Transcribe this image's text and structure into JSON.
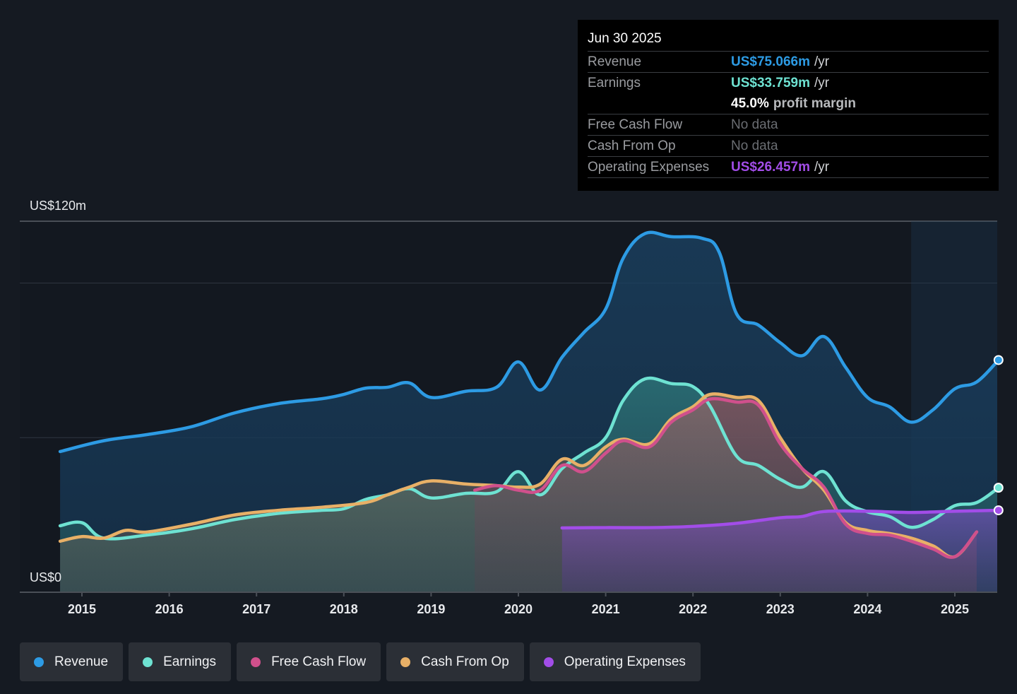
{
  "tooltip": {
    "date": "Jun 30 2025",
    "rows": [
      {
        "label": "Revenue",
        "value": "US$75.066m",
        "unit": "/yr",
        "color": "#2d9be4"
      },
      {
        "label": "Earnings",
        "value": "US$33.759m",
        "unit": "/yr",
        "color": "#6ee2d2"
      },
      {
        "label": "",
        "pct": "45.0%",
        "note": "profit margin"
      },
      {
        "label": "Free Cash Flow",
        "value": "No data"
      },
      {
        "label": "Cash From Op",
        "value": "No data"
      },
      {
        "label": "Operating Expenses",
        "value": "US$26.457m",
        "unit": "/yr",
        "color": "#a24de8"
      }
    ]
  },
  "legend": [
    {
      "label": "Revenue",
      "color": "#2d9be4"
    },
    {
      "label": "Earnings",
      "color": "#6ee2d2"
    },
    {
      "label": "Free Cash Flow",
      "color": "#d0508c"
    },
    {
      "label": "Cash From Op",
      "color": "#e8b067"
    },
    {
      "label": "Operating Expenses",
      "color": "#a24de8"
    }
  ],
  "chart_data": {
    "type": "area",
    "title": "",
    "xlabel": "",
    "ylabel": "",
    "y_top_label": "US$120m",
    "y_bottom_label": "US$0",
    "ylim": [
      0,
      120
    ],
    "xlim": [
      2014.75,
      2025.5
    ],
    "x_ticks": [
      2015,
      2016,
      2017,
      2018,
      2019,
      2020,
      2021,
      2022,
      2023,
      2024,
      2025
    ],
    "x_tick_labels": [
      "2015",
      "2016",
      "2017",
      "2018",
      "2019",
      "2020",
      "2021",
      "2022",
      "2023",
      "2024",
      "2025"
    ],
    "gridlines_y": [
      50,
      100,
      120
    ],
    "highlight_region_start": 2024.5,
    "unit": "US$m",
    "series": [
      {
        "name": "Revenue",
        "color": "#2d9be4",
        "x": [
          2014.75,
          2015.25,
          2015.75,
          2016.25,
          2016.75,
          2017.25,
          2017.75,
          2018.0,
          2018.25,
          2018.5,
          2018.75,
          2019.0,
          2019.4,
          2019.75,
          2020.0,
          2020.25,
          2020.5,
          2020.75,
          2021.0,
          2021.2,
          2021.45,
          2021.75,
          2022.1,
          2022.3,
          2022.5,
          2022.75,
          2023.0,
          2023.25,
          2023.5,
          2023.75,
          2024.0,
          2024.25,
          2024.5,
          2024.75,
          2025.0,
          2025.25,
          2025.5
        ],
        "values": [
          45.5,
          49,
          51,
          53.5,
          58,
          61,
          62.6,
          64,
          66,
          66.3,
          67.7,
          63,
          65,
          66.3,
          74.5,
          65.4,
          76,
          84,
          91.6,
          108,
          116,
          115,
          114.5,
          110,
          90,
          86.4,
          80.7,
          76.5,
          82.7,
          72.7,
          63,
          60,
          55,
          59,
          65.8,
          68,
          75.1
        ]
      },
      {
        "name": "Earnings",
        "color": "#6ee2d2",
        "x": [
          2014.75,
          2015.0,
          2015.25,
          2015.75,
          2016.25,
          2016.75,
          2017.25,
          2017.75,
          2018.0,
          2018.25,
          2018.5,
          2018.75,
          2019.0,
          2019.4,
          2019.75,
          2020.0,
          2020.25,
          2020.5,
          2020.75,
          2021.0,
          2021.2,
          2021.45,
          2021.75,
          2022.0,
          2022.2,
          2022.5,
          2022.75,
          2023.0,
          2023.25,
          2023.5,
          2023.75,
          2024.0,
          2024.25,
          2024.5,
          2024.75,
          2025.0,
          2025.25,
          2025.5
        ],
        "values": [
          21.5,
          22.5,
          17.5,
          18.5,
          20.5,
          23.5,
          25.5,
          26.5,
          27,
          30,
          31.5,
          33.5,
          30.5,
          32,
          32.5,
          39,
          31.5,
          40,
          45,
          50,
          62,
          69,
          67.5,
          66.5,
          60,
          44,
          41,
          36.5,
          34,
          39,
          29.5,
          26,
          24.5,
          21,
          23.5,
          28,
          29,
          33.8
        ]
      },
      {
        "name": "Free Cash Flow",
        "color": "#d0508c",
        "x": [
          2019.5,
          2019.75,
          2020.0,
          2020.25,
          2020.5,
          2020.75,
          2021.0,
          2021.2,
          2021.5,
          2021.75,
          2022.0,
          2022.2,
          2022.5,
          2022.75,
          2023.0,
          2023.25,
          2023.5,
          2023.75,
          2024.0,
          2024.25,
          2024.5,
          2024.75,
          2025.0,
          2025.25
        ],
        "values": [
          33,
          34.5,
          33,
          33,
          41,
          39,
          45,
          49,
          47,
          55,
          59,
          62.5,
          61.5,
          60.5,
          48,
          40,
          34,
          22,
          19,
          18.5,
          16.5,
          14,
          11.5,
          19.5
        ]
      },
      {
        "name": "Cash From Op",
        "color": "#e8b067",
        "x": [
          2014.75,
          2015.0,
          2015.25,
          2015.5,
          2015.75,
          2016.25,
          2016.75,
          2017.25,
          2017.75,
          2018.25,
          2018.5,
          2018.75,
          2019.0,
          2019.4,
          2019.75,
          2020.0,
          2020.25,
          2020.5,
          2020.75,
          2021.0,
          2021.2,
          2021.5,
          2021.75,
          2022.0,
          2022.2,
          2022.5,
          2022.75,
          2023.0,
          2023.25,
          2023.5,
          2023.75,
          2024.0,
          2024.25,
          2024.5,
          2024.75,
          2025.0,
          2025.25
        ],
        "values": [
          16.5,
          18,
          17.5,
          20,
          19.5,
          22,
          25,
          26.5,
          27.5,
          29,
          31.5,
          34,
          36,
          35,
          34.5,
          34,
          35,
          43,
          41,
          47,
          49.5,
          48,
          56,
          60,
          64,
          63,
          62,
          50,
          40,
          33,
          22.5,
          20,
          19,
          17.5,
          15,
          11.5,
          19.5
        ]
      },
      {
        "name": "Operating Expenses",
        "color": "#a24de8",
        "x": [
          2020.5,
          2021.0,
          2021.5,
          2022.0,
          2022.5,
          2023.0,
          2023.25,
          2023.5,
          2024.0,
          2024.5,
          2025.0,
          2025.5
        ],
        "values": [
          20.8,
          20.9,
          20.9,
          21.3,
          22.3,
          24.1,
          24.5,
          26.1,
          26.2,
          25.8,
          26.2,
          26.5
        ]
      }
    ]
  }
}
